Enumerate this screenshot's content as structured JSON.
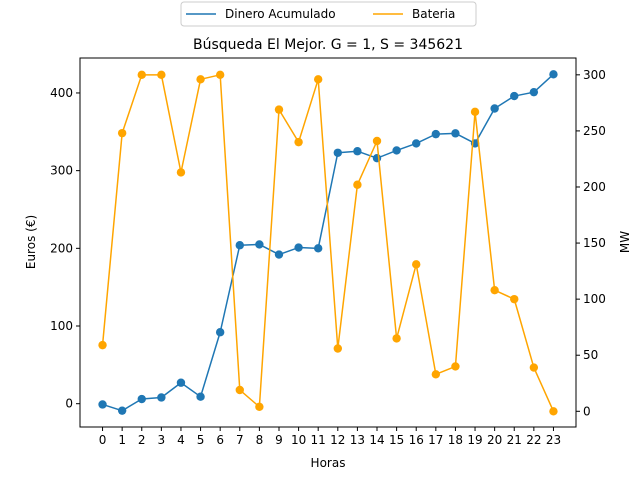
{
  "chart_data": {
    "type": "line",
    "title": "Búsqueda El Mejor. G = 1, S = 345621",
    "xlabel": "Horas",
    "ylabel_left": "Euros (€)",
    "ylabel_right": "MW",
    "x": [
      0,
      1,
      2,
      3,
      4,
      5,
      6,
      7,
      8,
      9,
      10,
      11,
      12,
      13,
      14,
      15,
      16,
      17,
      18,
      19,
      20,
      21,
      22,
      23
    ],
    "xticks": [
      "0",
      "1",
      "2",
      "3",
      "4",
      "5",
      "6",
      "7",
      "8",
      "9",
      "10",
      "11",
      "12",
      "13",
      "14",
      "15",
      "16",
      "17",
      "18",
      "19",
      "20",
      "21",
      "22",
      "23"
    ],
    "ylim_left": [
      -30,
      445
    ],
    "yticks_left": [
      "0",
      "100",
      "200",
      "300",
      "400"
    ],
    "ylim_right": [
      -14,
      315
    ],
    "yticks_right": [
      "0",
      "50",
      "100",
      "150",
      "200",
      "250",
      "300"
    ],
    "legend_location": "top-center",
    "grid": false,
    "series": [
      {
        "name": "Dinero Acumulado",
        "axis": "left",
        "color": "#1f77b4",
        "values": [
          -1,
          -9,
          6,
          8,
          27,
          9,
          92,
          204,
          205,
          192,
          201,
          200,
          323,
          325,
          316,
          326,
          335,
          347,
          348,
          335,
          380,
          396,
          401,
          424
        ]
      },
      {
        "name": "Bateria",
        "axis": "right",
        "color": "#ffa500",
        "values": [
          59,
          248,
          300,
          300,
          213,
          296,
          300,
          19,
          4,
          269,
          240,
          296,
          56,
          202,
          241,
          65,
          131,
          33,
          40,
          267,
          108,
          100,
          39,
          0
        ]
      }
    ]
  }
}
